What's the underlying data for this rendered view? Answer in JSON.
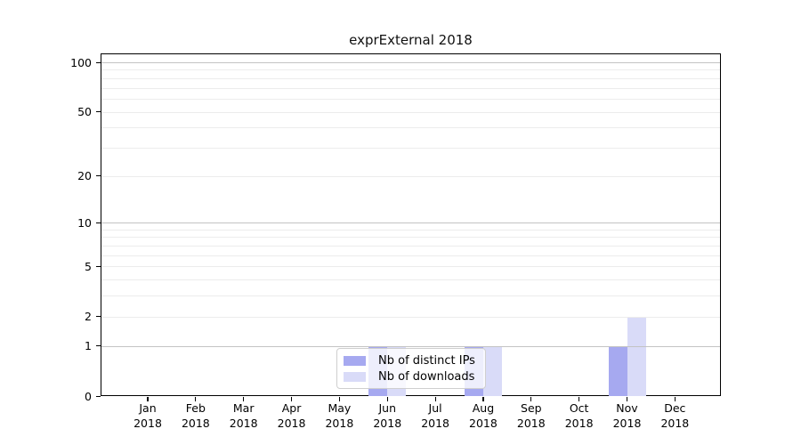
{
  "title": "exprExternal 2018",
  "legend": {
    "items": [
      {
        "label": "Nb of distinct IPs",
        "color": "#a6a9f0"
      },
      {
        "label": "Nb of downloads",
        "color": "#d9dbf8"
      }
    ]
  },
  "chart_data": {
    "type": "bar",
    "title": "exprExternal 2018",
    "categories": [
      "Jan",
      "Feb",
      "Mar",
      "Apr",
      "May",
      "Jun",
      "Jul",
      "Aug",
      "Sep",
      "Oct",
      "Nov",
      "Dec"
    ],
    "x_tick_second_line": "2018",
    "series": [
      {
        "name": "Nb of distinct IPs",
        "color": "#a6a9f0",
        "values": [
          0,
          0,
          0,
          0,
          0,
          1,
          0,
          1,
          0,
          0,
          1,
          0
        ]
      },
      {
        "name": "Nb of downloads",
        "color": "#d9dbf8",
        "values": [
          0,
          0,
          0,
          0,
          0,
          1,
          0,
          1,
          0,
          0,
          2,
          0
        ]
      }
    ],
    "y_scale": "log10(1+value)",
    "ylim": [
      0,
      113
    ],
    "y_ticks": [
      0,
      1,
      2,
      5,
      10,
      20,
      50,
      100
    ],
    "major_gridlines": [
      1,
      10,
      100
    ],
    "minor_gridlines": [
      2,
      3,
      4,
      5,
      6,
      7,
      8,
      9,
      20,
      30,
      40,
      50,
      60,
      70,
      80,
      90
    ],
    "grid_color_major": "#c3c3c3",
    "grid_color_minor": "#ececec",
    "grid": true,
    "legend_position": "inside-bottom-center"
  }
}
